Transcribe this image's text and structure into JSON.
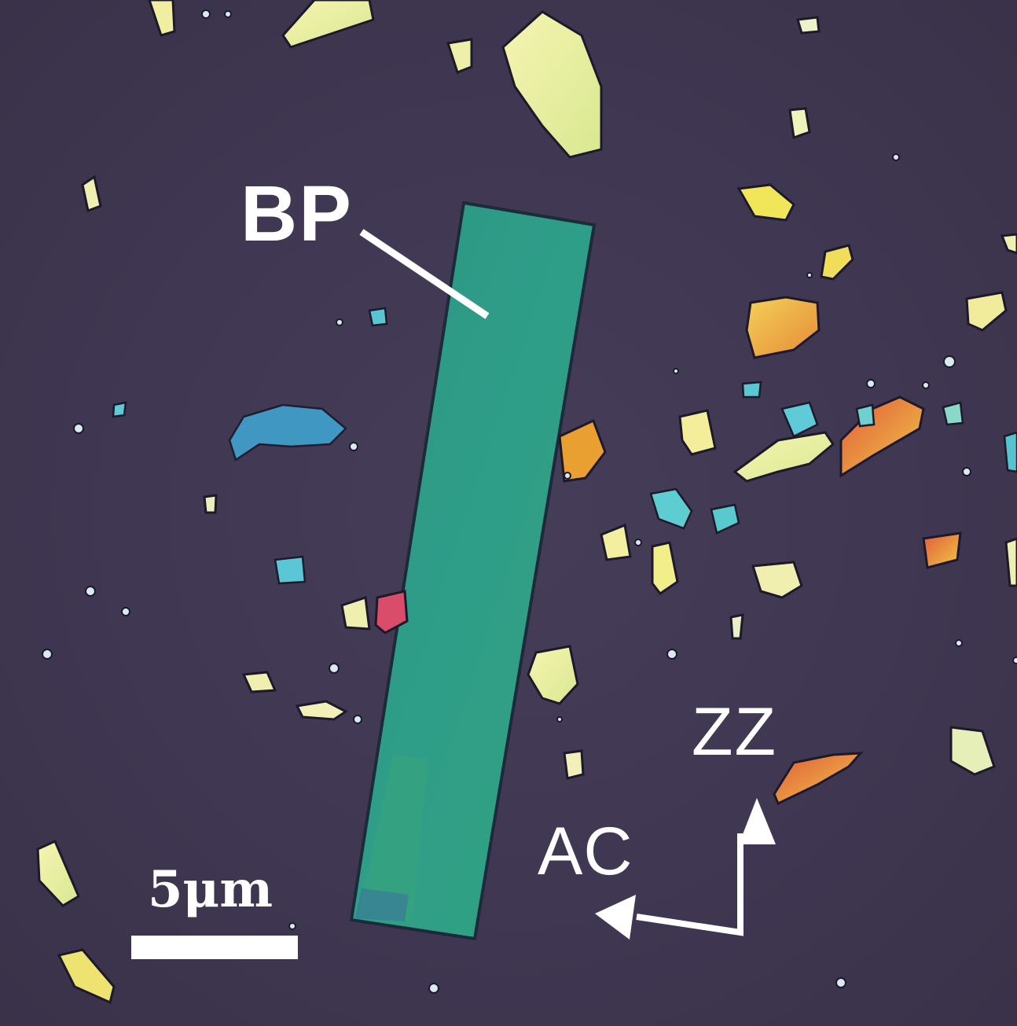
{
  "labels": {
    "flake": "BP",
    "zigzag_axis": "ZZ",
    "armchair_axis": "AC",
    "scale": "5μm"
  },
  "colors": {
    "substrate": "#3f3751",
    "bp_flake": "#2e9a86",
    "thin_flakes_yellow": "#eef0a8",
    "thick_flakes_orange": "#e8a23a",
    "thin_flakes_cyan": "#4fc3d6",
    "annotation": "#ffffff"
  }
}
